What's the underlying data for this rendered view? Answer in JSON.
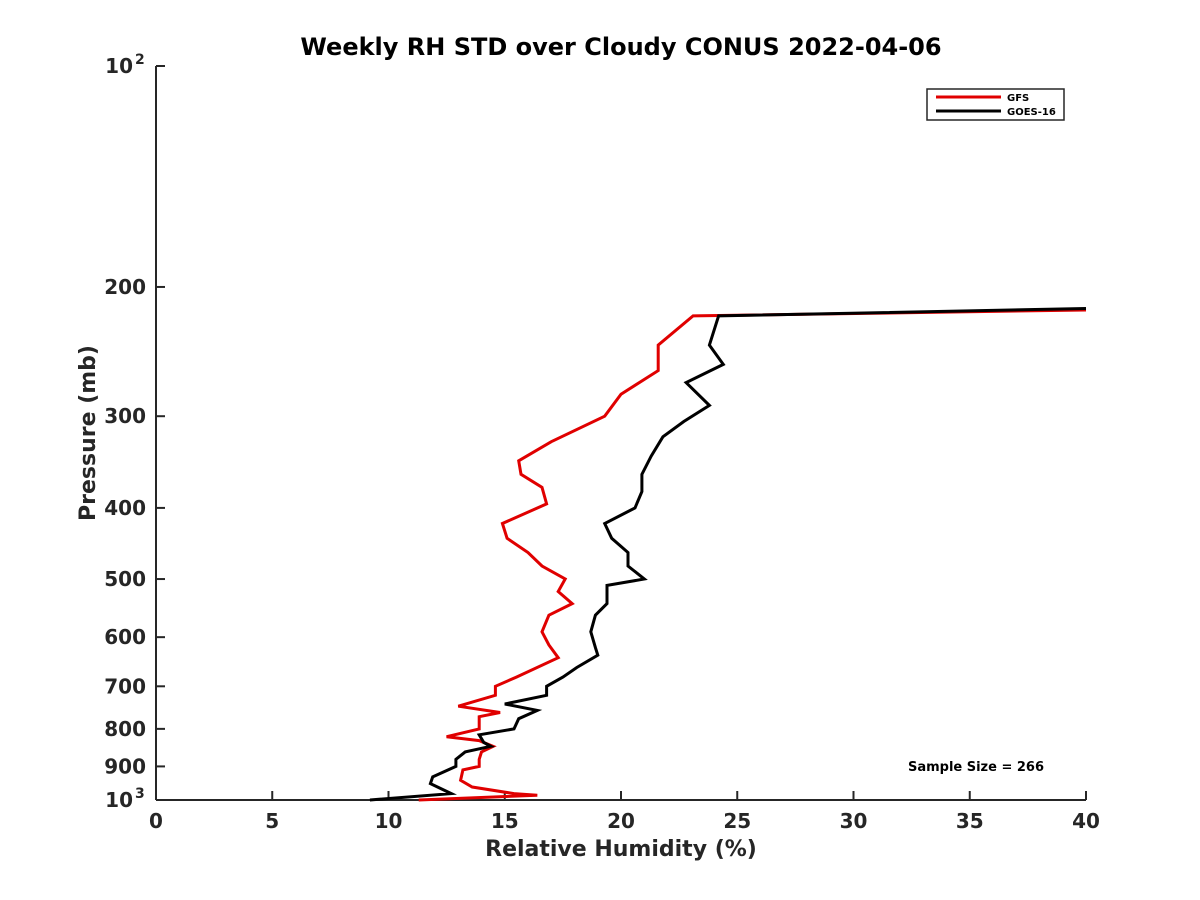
{
  "chart_data": {
    "type": "line",
    "title": "Weekly RH STD over Cloudy CONUS 2022-04-06",
    "xlabel": "Relative Humidity (%)",
    "ylabel": "Pressure (mb)",
    "xlim": [
      0,
      40
    ],
    "ylim": [
      100,
      1000
    ],
    "y_scale": "log",
    "y_reversed": true,
    "grid": false,
    "legend_position": "top-right",
    "x_ticks": [
      {
        "value": 0,
        "label": "0"
      },
      {
        "value": 5,
        "label": "5"
      },
      {
        "value": 10,
        "label": "10"
      },
      {
        "value": 15,
        "label": "15"
      },
      {
        "value": 20,
        "label": "20"
      },
      {
        "value": 25,
        "label": "25"
      },
      {
        "value": 30,
        "label": "30"
      },
      {
        "value": 35,
        "label": "35"
      },
      {
        "value": 40,
        "label": "40"
      }
    ],
    "y_ticks": [
      {
        "value": 100,
        "label": "10",
        "sup": "2"
      },
      {
        "value": 200,
        "label": "200",
        "sup": ""
      },
      {
        "value": 300,
        "label": "300",
        "sup": ""
      },
      {
        "value": 400,
        "label": "400",
        "sup": ""
      },
      {
        "value": 500,
        "label": "500",
        "sup": ""
      },
      {
        "value": 600,
        "label": "600",
        "sup": ""
      },
      {
        "value": 700,
        "label": "700",
        "sup": ""
      },
      {
        "value": 800,
        "label": "800",
        "sup": ""
      },
      {
        "value": 900,
        "label": "900",
        "sup": ""
      },
      {
        "value": 1000,
        "label": "10",
        "sup": "3"
      }
    ],
    "annotation": "Sample Size = 266",
    "series": [
      {
        "name": "GFS",
        "color": "#e00000",
        "points": [
          [
            40.0,
            215
          ],
          [
            23.1,
            219
          ],
          [
            21.6,
            240
          ],
          [
            21.6,
            260
          ],
          [
            20.0,
            280
          ],
          [
            19.3,
            300
          ],
          [
            17.0,
            325
          ],
          [
            15.6,
            345
          ],
          [
            15.7,
            360
          ],
          [
            16.6,
            375
          ],
          [
            16.8,
            395
          ],
          [
            14.9,
            420
          ],
          [
            15.1,
            440
          ],
          [
            16.0,
            460
          ],
          [
            16.6,
            480
          ],
          [
            17.6,
            500
          ],
          [
            17.3,
            520
          ],
          [
            17.9,
            540
          ],
          [
            16.9,
            560
          ],
          [
            16.6,
            590
          ],
          [
            16.9,
            615
          ],
          [
            17.3,
            640
          ],
          [
            15.5,
            680
          ],
          [
            14.6,
            700
          ],
          [
            14.6,
            720
          ],
          [
            13.0,
            745
          ],
          [
            14.8,
            760
          ],
          [
            13.9,
            770
          ],
          [
            13.9,
            800
          ],
          [
            12.5,
            820
          ],
          [
            13.9,
            830
          ],
          [
            14.5,
            845
          ],
          [
            14.0,
            860
          ],
          [
            13.9,
            880
          ],
          [
            13.9,
            900
          ],
          [
            13.2,
            910
          ],
          [
            13.1,
            940
          ],
          [
            13.6,
            960
          ],
          [
            15.4,
            980
          ],
          [
            16.4,
            985
          ],
          [
            11.3,
            1000
          ]
        ]
      },
      {
        "name": "GOES-16",
        "color": "#000000",
        "points": [
          [
            40.0,
            214
          ],
          [
            24.2,
            219
          ],
          [
            23.8,
            240
          ],
          [
            24.4,
            255
          ],
          [
            22.8,
            270
          ],
          [
            23.8,
            290
          ],
          [
            22.7,
            305
          ],
          [
            21.8,
            320
          ],
          [
            21.3,
            340
          ],
          [
            20.9,
            360
          ],
          [
            20.9,
            380
          ],
          [
            20.6,
            400
          ],
          [
            19.3,
            420
          ],
          [
            19.6,
            440
          ],
          [
            20.3,
            460
          ],
          [
            20.3,
            480
          ],
          [
            21.0,
            500
          ],
          [
            19.4,
            510
          ],
          [
            19.4,
            540
          ],
          [
            18.9,
            560
          ],
          [
            18.7,
            590
          ],
          [
            18.9,
            620
          ],
          [
            19.0,
            635
          ],
          [
            18.1,
            660
          ],
          [
            17.5,
            680
          ],
          [
            16.8,
            700
          ],
          [
            16.8,
            720
          ],
          [
            15.0,
            740
          ],
          [
            16.4,
            755
          ],
          [
            15.6,
            775
          ],
          [
            15.4,
            800
          ],
          [
            13.9,
            815
          ],
          [
            14.1,
            835
          ],
          [
            14.4,
            845
          ],
          [
            13.3,
            860
          ],
          [
            12.9,
            880
          ],
          [
            12.9,
            900
          ],
          [
            11.9,
            930
          ],
          [
            11.8,
            950
          ],
          [
            12.7,
            980
          ],
          [
            9.2,
            1000
          ]
        ]
      }
    ]
  }
}
